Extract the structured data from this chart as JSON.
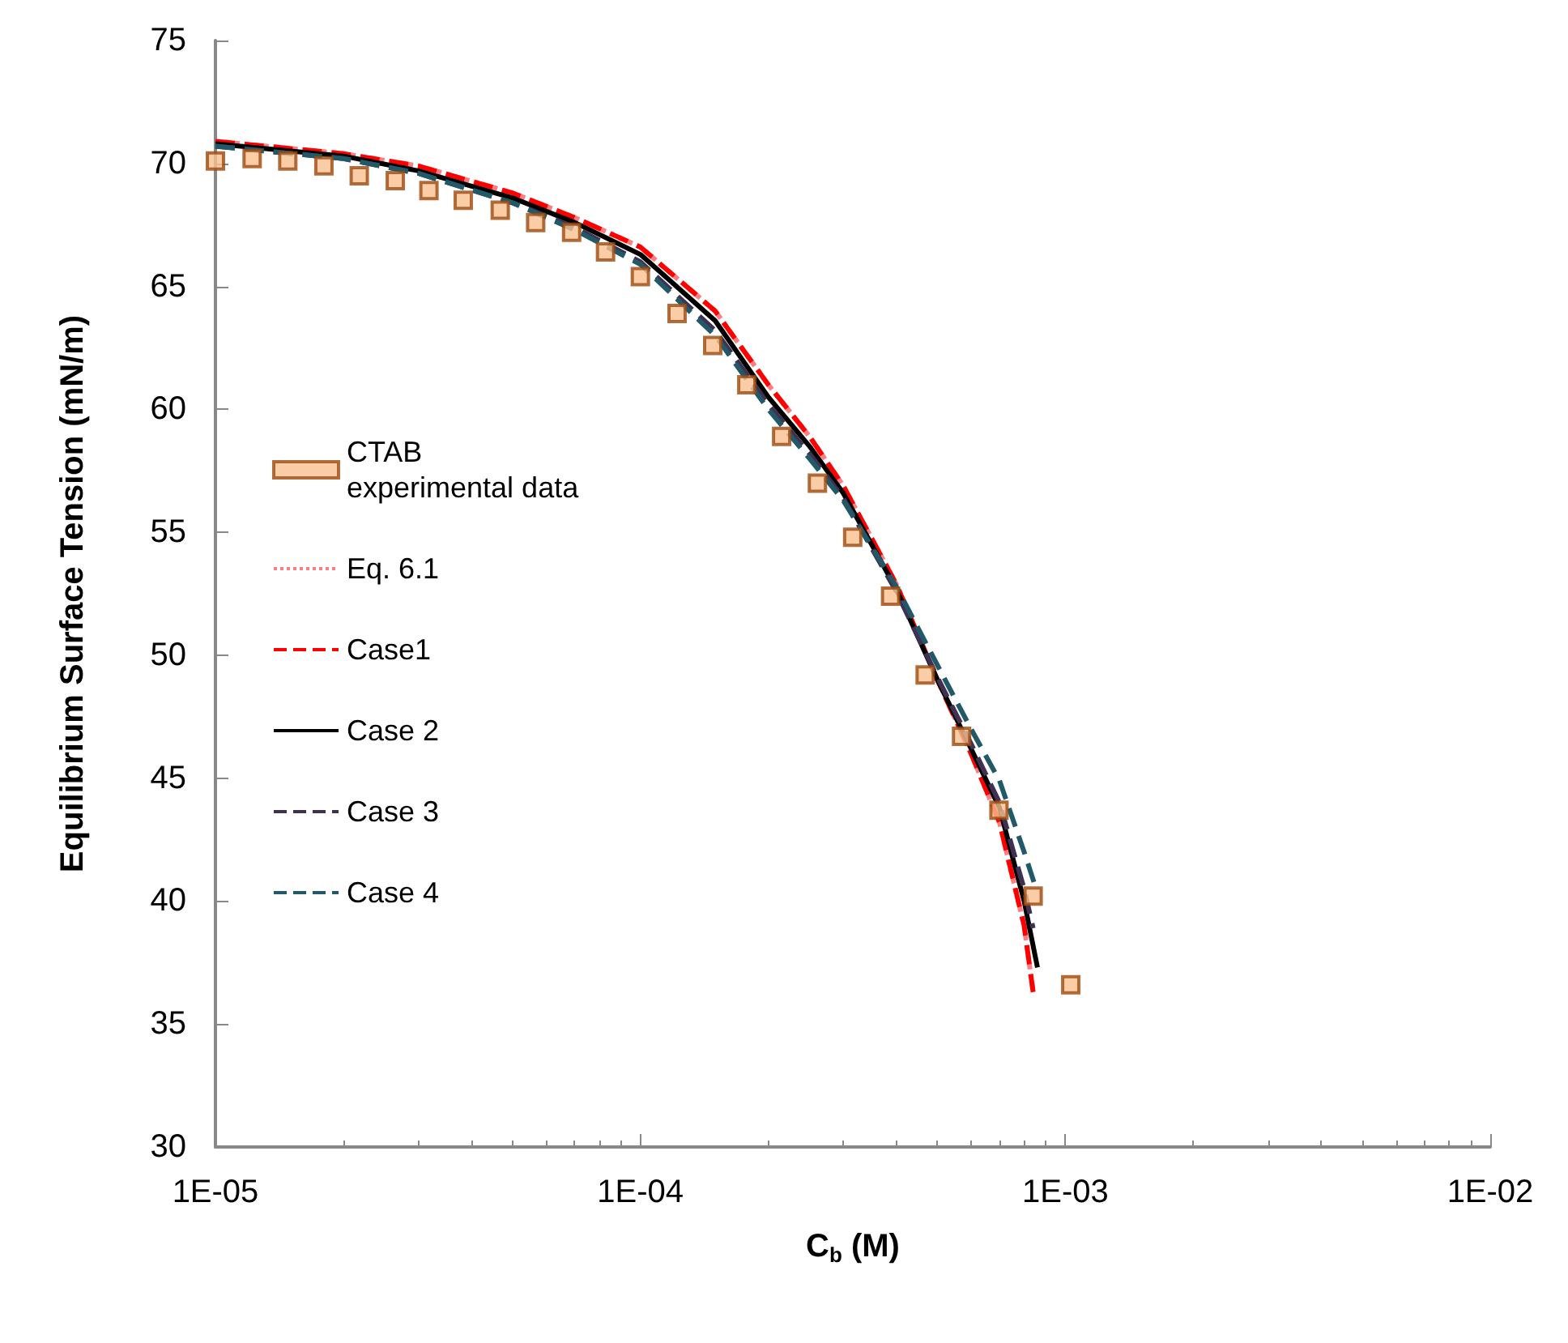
{
  "chart_data": {
    "type": "scatter",
    "xlabel": "C$_{b}$ (M)",
    "ylabel": "Equilibrium Surface Tension (mN/m)",
    "log": "x",
    "xlim": [
      1e-05,
      0.01
    ],
    "xticks": [
      {
        "value": 1e-05,
        "label": "1E-05"
      },
      {
        "value": 0.0001,
        "label": "1E-04"
      },
      {
        "value": 0.001,
        "label": "1E-03"
      },
      {
        "value": 0.01,
        "label": "1E-02"
      }
    ],
    "ylim": [
      30,
      75
    ],
    "yticks": [
      30,
      35,
      40,
      45,
      50,
      55,
      60,
      65,
      70,
      75
    ],
    "grid": false,
    "legend": "left",
    "series": [
      {
        "name": "CTAB\nexperimental data",
        "marker": "square",
        "color": "#fac090",
        "x": [
          1e-05,
          1.22e-05,
          1.48e-05,
          1.8e-05,
          2.18e-05,
          2.65e-05,
          3.18e-05,
          3.83e-05,
          4.68e-05,
          5.67e-05,
          6.89e-05,
          8.28e-05,
          0.0001,
          0.000122,
          0.000148,
          0.000178,
          0.000215,
          0.000261,
          0.000316,
          0.000388,
          0.000468,
          0.00057,
          0.000698,
          0.00084,
          0.00103
        ],
        "values": [
          70.1,
          70.2,
          70.1,
          69.9,
          69.5,
          69.3,
          68.9,
          68.5,
          68.1,
          67.6,
          67.2,
          66.4,
          65.4,
          63.9,
          62.6,
          61.0,
          58.9,
          57.0,
          54.8,
          52.4,
          49.2,
          46.7,
          43.7,
          40.2,
          36.6
        ]
      },
      {
        "name": "Eq. 6.1",
        "type": "line",
        "line_style": "dotted",
        "color": "#ff7c80",
        "x": [
          1e-05,
          2e-05,
          3e-05,
          5e-05,
          7e-05,
          0.0001,
          0.00015,
          0.0002,
          0.00025,
          0.0003,
          0.0004,
          0.0005,
          0.0006,
          0.0007,
          0.0008,
          0.00084
        ],
        "values": [
          70.9,
          70.4,
          69.9,
          68.8,
          67.8,
          66.6,
          64.0,
          61.0,
          58.9,
          56.9,
          52.9,
          49.0,
          46.0,
          43.2,
          39.0,
          36.3
        ]
      },
      {
        "name": "Case1",
        "type": "line",
        "line_style": "dashed",
        "color": "#ff0000",
        "x": [
          1e-05,
          2e-05,
          3e-05,
          5e-05,
          7e-05,
          0.0001,
          0.00015,
          0.0002,
          0.00025,
          0.0003,
          0.0004,
          0.0005,
          0.0006,
          0.0007,
          0.0008,
          0.00084
        ],
        "values": [
          70.9,
          70.4,
          69.9,
          68.8,
          67.8,
          66.6,
          64.0,
          61.0,
          58.9,
          56.9,
          52.9,
          49.0,
          46.0,
          43.2,
          39.0,
          36.3
        ]
      },
      {
        "name": "Case 2",
        "type": "line",
        "line_style": "solid",
        "color": "#000000",
        "x": [
          1e-05,
          2e-05,
          3e-05,
          5e-05,
          7e-05,
          0.0001,
          0.00015,
          0.0002,
          0.00025,
          0.0003,
          0.0004,
          0.0005,
          0.0006,
          0.0007,
          0.0008,
          0.00086
        ],
        "values": [
          70.8,
          70.3,
          69.7,
          68.6,
          67.6,
          66.3,
          63.6,
          60.5,
          58.5,
          56.6,
          52.7,
          49.0,
          46.2,
          43.8,
          40.0,
          37.3
        ]
      },
      {
        "name": "Case 3",
        "type": "line",
        "line_style": "dashed",
        "color": "#403152",
        "x": [
          1e-05,
          2e-05,
          3e-05,
          5e-05,
          7e-05,
          0.0001,
          0.00015,
          0.0002,
          0.00025,
          0.0003,
          0.0004,
          0.0005,
          0.0006,
          0.0007,
          0.0008,
          0.00084
        ],
        "values": [
          70.7,
          70.2,
          69.6,
          68.4,
          67.4,
          66.0,
          63.2,
          60.2,
          58.2,
          56.4,
          52.6,
          49.1,
          46.4,
          44.0,
          40.5,
          38.9
        ]
      },
      {
        "name": "Case 4",
        "type": "line",
        "line_style": "dashed",
        "color": "#215968",
        "x": [
          1e-05,
          2e-05,
          3e-05,
          5e-05,
          7e-05,
          0.0001,
          0.00015,
          0.0002,
          0.00025,
          0.0003,
          0.0004,
          0.0005,
          0.0006,
          0.0007,
          0.0008,
          0.00085
        ],
        "values": [
          70.7,
          70.2,
          69.6,
          68.4,
          67.3,
          65.9,
          63.0,
          60.0,
          58.0,
          56.3,
          52.8,
          49.6,
          47.0,
          44.9,
          42.0,
          40.6
        ]
      }
    ]
  }
}
